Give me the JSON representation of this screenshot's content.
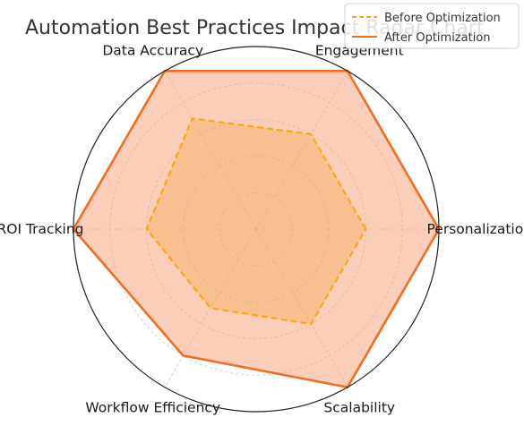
{
  "chart_data": {
    "type": "radar",
    "title": "Automation Best Practices Impact Radar Chart",
    "categories": [
      "Personalization",
      "Engagement",
      "Data Accuracy",
      "ROI Tracking",
      "Workflow Efficiency",
      "Scalability"
    ],
    "rmax": 10,
    "rticks": [
      2,
      4,
      6,
      8,
      10
    ],
    "grid": true,
    "legend": "top-right",
    "series": [
      {
        "name": "Before Optimization",
        "values": [
          6,
          6,
          7,
          6,
          5,
          6
        ],
        "color": "#FFA500",
        "style": "dashed",
        "fill": "#FFA500"
      },
      {
        "name": "After Optimization",
        "values": [
          10,
          10,
          10,
          10,
          8,
          10
        ],
        "color": "#F06E23",
        "style": "solid",
        "fill": "#F5A67D"
      }
    ]
  }
}
